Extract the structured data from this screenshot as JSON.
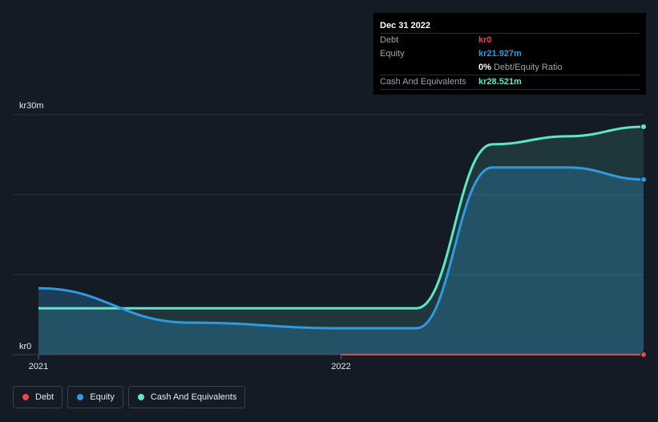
{
  "tooltip": {
    "date": "Dec 31 2022",
    "rows": [
      {
        "label": "Debt",
        "value": "kr0",
        "color": "#e8474d"
      },
      {
        "label": "Equity",
        "value": "kr21.927m",
        "color": "#2f9ae0"
      },
      {
        "label": "",
        "value": "0%",
        "suffix": "Debt/Equity Ratio",
        "color": "#ffffff"
      },
      {
        "label": "Cash And Equivalents",
        "value": "kr28.521m",
        "color": "#5ee6c8"
      }
    ]
  },
  "legend": [
    {
      "label": "Debt",
      "color": "#e8474d"
    },
    {
      "label": "Equity",
      "color": "#2f9ae0"
    },
    {
      "label": "Cash And Equivalents",
      "color": "#5ee6c8"
    }
  ],
  "chart_data": {
    "type": "area",
    "ylabel_top": "kr30m",
    "ylabel_bottom": "kr0",
    "ylim": [
      0,
      30
    ],
    "xlim": [
      2021.0,
      2023.0
    ],
    "xticks": [
      {
        "value": 2021.0,
        "label": "2021"
      },
      {
        "value": 2022.0,
        "label": "2022"
      }
    ],
    "gridlines": [
      0,
      10,
      20,
      30
    ],
    "series": [
      {
        "name": "Cash And Equivalents",
        "color": "#5ee6c8",
        "x": [
          2021.0,
          2021.5,
          2022.0,
          2022.25,
          2022.5,
          2022.75,
          2023.0
        ],
        "values": [
          5.8,
          5.8,
          5.8,
          5.8,
          26.3,
          27.3,
          28.5
        ]
      },
      {
        "name": "Equity",
        "color": "#2f9ae0",
        "x": [
          2021.0,
          2021.5,
          2022.0,
          2022.25,
          2022.5,
          2022.75,
          2023.0
        ],
        "values": [
          8.3,
          4.0,
          3.3,
          3.3,
          23.4,
          23.4,
          21.9
        ]
      },
      {
        "name": "Debt",
        "color": "#e8474d",
        "x": [
          2022.0,
          2023.0
        ],
        "values": [
          0,
          0
        ]
      }
    ]
  }
}
